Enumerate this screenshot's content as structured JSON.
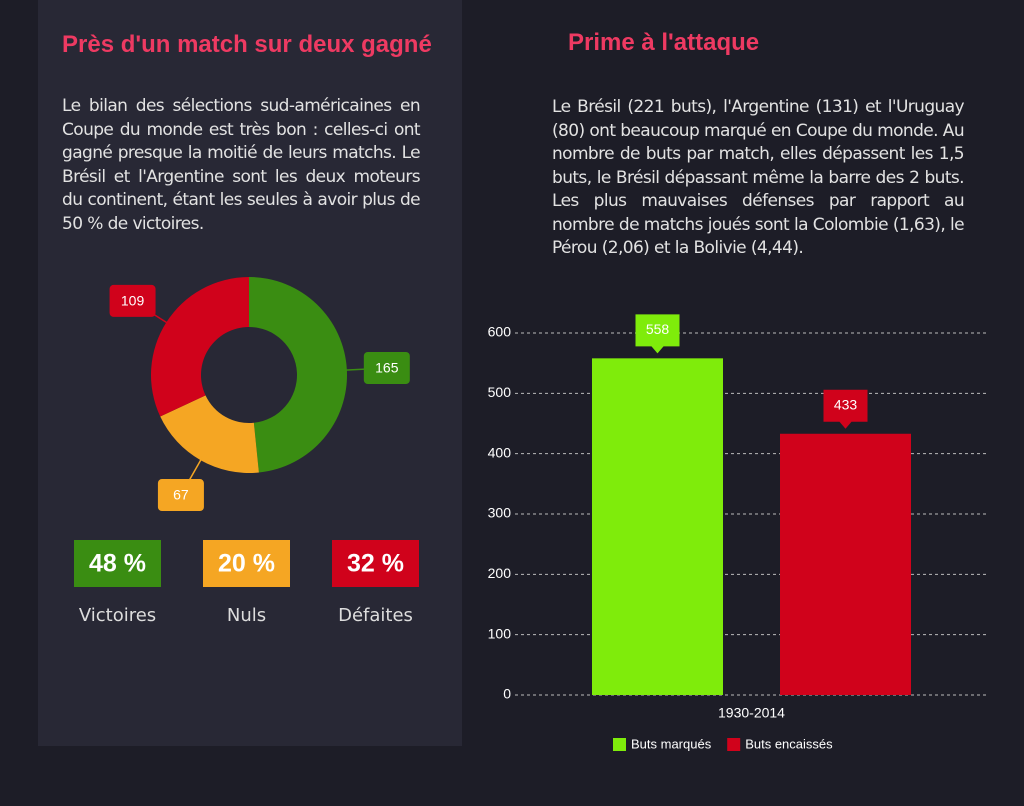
{
  "chart_data": [
    {
      "type": "pie",
      "title": "Près d'un match sur deux gagné",
      "subtitle": "Le bilan des sélections sud-américaines en Coupe du monde est très bon : celles-ci ont gagné presque la moitié de leurs matchs. Le Brésil et l'Argentine sont les deux moteurs du continent, étant les seules à avoir plus de 50 % de victoires.",
      "categories": [
        "Victoires",
        "Nuls",
        "Défaites"
      ],
      "values": [
        165,
        67,
        109
      ],
      "colors": [
        "#3a8d12",
        "#f5a623",
        "#d0021b"
      ],
      "percents": [
        48,
        20,
        32
      ],
      "percent_labels": [
        "48 %",
        "20 %",
        "32 %"
      ]
    },
    {
      "type": "bar",
      "title": "Prime à l'attaque",
      "subtitle": "Le Brésil (221 buts), l'Argentine (131) et l'Uruguay (80) ont beaucoup marqué en Coupe du monde. Au nombre de buts par match, elles dépassent les 1,5 buts, le Brésil dépassant même la barre des 2 buts. Les plus mauvaises défenses par rapport au nombre de matchs joués sont la Colombie (1,63), le Pérou (2,06) et la Bolivie (4,44).",
      "categories": [
        "1930-2014"
      ],
      "series": [
        {
          "name": "Buts marqués",
          "color": "#7fec0b",
          "values": [
            558
          ]
        },
        {
          "name": "Buts encaissés",
          "color": "#d0021b",
          "values": [
            433
          ]
        }
      ],
      "ylim": [
        0,
        600
      ],
      "yticks": [
        0,
        100,
        200,
        300,
        400,
        500,
        600
      ],
      "grid": true
    }
  ]
}
